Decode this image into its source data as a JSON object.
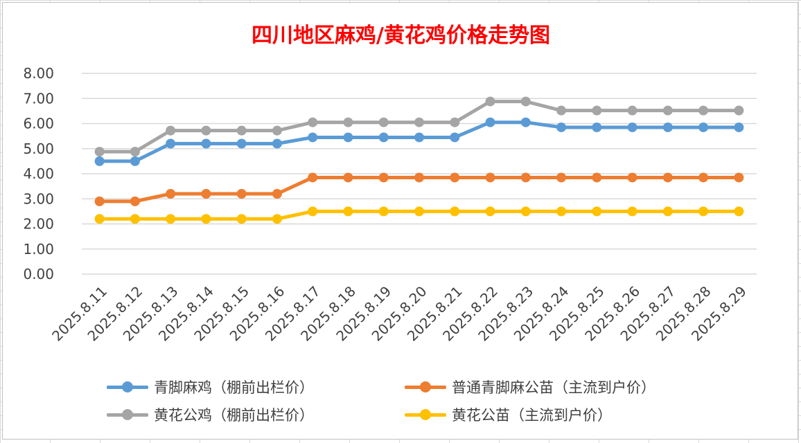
{
  "chart_data": {
    "type": "line",
    "title": "四川地区麻鸡/黄花鸡价格走势图",
    "xlabel": "",
    "ylabel": "",
    "ylim": [
      0,
      8
    ],
    "yticks": [
      "0.00",
      "1.00",
      "2.00",
      "3.00",
      "4.00",
      "5.00",
      "6.00",
      "7.00",
      "8.00"
    ],
    "grid": true,
    "legend_position": "bottom",
    "categories": [
      "2025.8.11",
      "2025.8.12",
      "2025.8.13",
      "2025.8.14",
      "2025.8.15",
      "2025.8.16",
      "2025.8.17",
      "2025.8.18",
      "2025.8.19",
      "2025.8.20",
      "2025.8.21",
      "2025.8.22",
      "2025.8.23",
      "2025.8.24",
      "2025.8.25",
      "2025.8.26",
      "2025.8.27",
      "2025.8.28",
      "2025.8.29"
    ],
    "series": [
      {
        "name": "青脚麻鸡（棚前出栏价）",
        "color": "#5b9bd5",
        "values": [
          4.5,
          4.5,
          5.2,
          5.2,
          5.2,
          5.2,
          5.45,
          5.45,
          5.45,
          5.45,
          5.45,
          6.05,
          6.05,
          5.85,
          5.85,
          5.85,
          5.85,
          5.85,
          5.85
        ]
      },
      {
        "name": "普通青脚麻公苗（主流到户价）",
        "color": "#ed7d31",
        "values": [
          2.9,
          2.9,
          3.2,
          3.2,
          3.2,
          3.2,
          3.85,
          3.85,
          3.85,
          3.85,
          3.85,
          3.85,
          3.85,
          3.85,
          3.85,
          3.85,
          3.85,
          3.85,
          3.85
        ]
      },
      {
        "name": "黄花公鸡（棚前出栏价）",
        "color": "#a5a5a5",
        "values": [
          4.88,
          4.88,
          5.72,
          5.72,
          5.72,
          5.72,
          6.05,
          6.05,
          6.05,
          6.05,
          6.05,
          6.88,
          6.88,
          6.52,
          6.52,
          6.52,
          6.52,
          6.52,
          6.52
        ]
      },
      {
        "name": "黄花公苗（主流到户价）",
        "color": "#ffc000",
        "values": [
          2.2,
          2.2,
          2.2,
          2.2,
          2.2,
          2.2,
          2.5,
          2.5,
          2.5,
          2.5,
          2.5,
          2.5,
          2.5,
          2.5,
          2.5,
          2.5,
          2.5,
          2.5,
          2.5
        ]
      }
    ]
  }
}
